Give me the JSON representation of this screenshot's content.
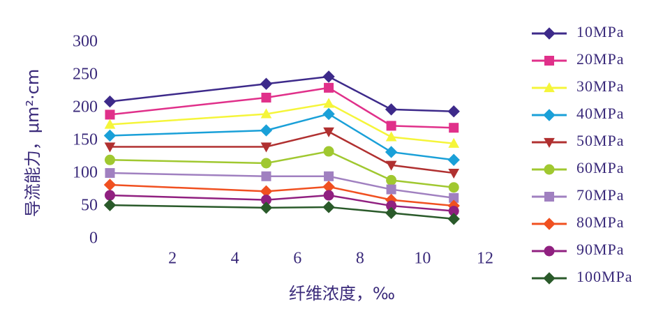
{
  "chart_data": {
    "type": "line",
    "x_label": "纤维浓度，‰",
    "y_label": "导流能力，μm²·cm",
    "x": [
      0,
      5,
      7,
      9,
      11
    ],
    "xlim": [
      0,
      12
    ],
    "xticks": [
      2,
      4,
      6,
      8,
      10,
      12
    ],
    "ylim": [
      0,
      300
    ],
    "yticks": [
      0,
      50,
      100,
      150,
      200,
      250,
      300
    ],
    "series": [
      {
        "name": "10MPa",
        "color": "#3d2a8a",
        "marker": "diamond",
        "values": [
          210,
          237,
          248,
          198,
          195
        ]
      },
      {
        "name": "20MPa",
        "color": "#e0308a",
        "marker": "square",
        "values": [
          190,
          216,
          231,
          173,
          170
        ]
      },
      {
        "name": "30MPa",
        "color": "#f5f53a",
        "marker": "triangle",
        "values": [
          175,
          191,
          207,
          156,
          146
        ]
      },
      {
        "name": "40MPa",
        "color": "#1aa0d8",
        "marker": "diamond",
        "values": [
          158,
          166,
          191,
          133,
          121
        ]
      },
      {
        "name": "50MPa",
        "color": "#b03030",
        "marker": "triangle-down",
        "values": [
          141,
          141,
          164,
          113,
          101
        ]
      },
      {
        "name": "60MPa",
        "color": "#a0c830",
        "marker": "circle",
        "values": [
          121,
          116,
          134,
          90,
          79
        ]
      },
      {
        "name": "70MPa",
        "color": "#a080c0",
        "marker": "square",
        "values": [
          101,
          96,
          96,
          76,
          63
        ]
      },
      {
        "name": "80MPa",
        "color": "#f05020",
        "marker": "diamond",
        "values": [
          83,
          73,
          80,
          60,
          51
        ]
      },
      {
        "name": "90MPa",
        "color": "#902080",
        "marker": "circle",
        "values": [
          67,
          60,
          67,
          51,
          43
        ]
      },
      {
        "name": "100MPa",
        "color": "#2a5a2a",
        "marker": "diamond",
        "values": [
          52,
          48,
          49,
          40,
          31
        ]
      }
    ]
  }
}
